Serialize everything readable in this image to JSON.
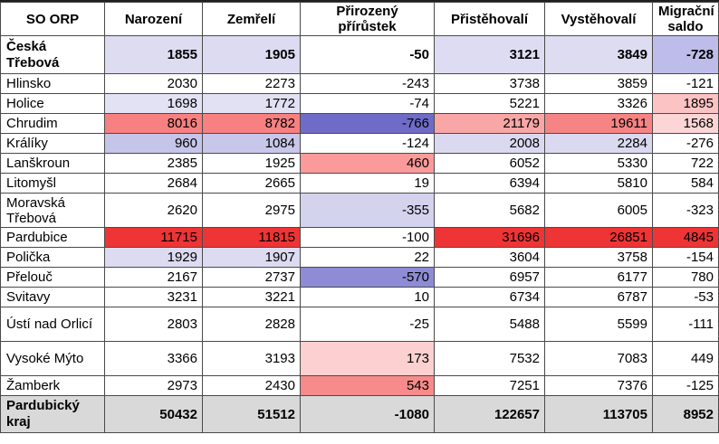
{
  "table": {
    "headers": [
      "SO ORP",
      "Narození",
      "Zemřelí",
      "Přirozený přírůstek",
      "Přistěhovalí",
      "Vystěhovalí",
      "Migrační saldo"
    ],
    "rows": [
      {
        "name": "Česká Třebová",
        "values": [
          "1855",
          "1905",
          "-50",
          "3121",
          "3849",
          "-728"
        ],
        "bold": true,
        "colors": [
          "#dddcf1",
          "#dcdbf1",
          "#ffffff",
          "#dedcf2",
          "#dddcf1",
          "#bebce8"
        ]
      },
      {
        "name": "Hlinsko",
        "values": [
          "2030",
          "2273",
          "-243",
          "3738",
          "3859",
          "-121"
        ],
        "bold": false,
        "colors": [
          "#ffffff",
          "#ffffff",
          "#ffffff",
          "#ffffff",
          "#ffffff",
          "#ffffff"
        ]
      },
      {
        "name": "Holice",
        "values": [
          "1698",
          "1772",
          "-74",
          "5221",
          "3326",
          "1895"
        ],
        "bold": false,
        "colors": [
          "#e3e2f4",
          "#e2e1f3",
          "#ffffff",
          "#ffffff",
          "#ffffff",
          "#fbc3c3"
        ]
      },
      {
        "name": "Chrudim",
        "values": [
          "8016",
          "8782",
          "-766",
          "21179",
          "19611",
          "1568"
        ],
        "bold": false,
        "colors": [
          "#f78080",
          "#f78080",
          "#6e6cc7",
          "#f9a6a6",
          "#f78484",
          "#fcd6d6"
        ]
      },
      {
        "name": "Králíky",
        "values": [
          "960",
          "1084",
          "-124",
          "2008",
          "2284",
          "-276"
        ],
        "bold": false,
        "colors": [
          "#c5c4e9",
          "#c8c7ea",
          "#ffffff",
          "#dad9f0",
          "#dad9f0",
          "#ffffff"
        ]
      },
      {
        "name": "Lanškroun",
        "values": [
          "2385",
          "1925",
          "460",
          "6052",
          "5330",
          "722"
        ],
        "bold": false,
        "colors": [
          "#ffffff",
          "#ffffff",
          "#fa9a9a",
          "#ffffff",
          "#ffffff",
          "#ffffff"
        ]
      },
      {
        "name": "Litomyšl",
        "values": [
          "2684",
          "2665",
          "19",
          "6394",
          "5810",
          "584"
        ],
        "bold": false,
        "colors": [
          "#ffffff",
          "#ffffff",
          "#ffffff",
          "#ffffff",
          "#ffffff",
          "#ffffff"
        ]
      },
      {
        "name": "Moravská Třebová",
        "values": [
          "2620",
          "2975",
          "-355",
          "5682",
          "6005",
          "-323"
        ],
        "bold": false,
        "colors": [
          "#ffffff",
          "#ffffff",
          "#d4d3ee",
          "#ffffff",
          "#ffffff",
          "#ffffff"
        ]
      },
      {
        "name": "Pardubice",
        "values": [
          "11715",
          "11815",
          "-100",
          "31696",
          "26851",
          "4845"
        ],
        "bold": false,
        "colors": [
          "#ee3434",
          "#ee3434",
          "#ffffff",
          "#ee3434",
          "#ee3434",
          "#ee3434"
        ]
      },
      {
        "name": "Polička",
        "values": [
          "1929",
          "1907",
          "22",
          "3604",
          "3758",
          "-154"
        ],
        "bold": false,
        "colors": [
          "#dcdbf1",
          "#dcdbf1",
          "#ffffff",
          "#ffffff",
          "#ffffff",
          "#ffffff"
        ]
      },
      {
        "name": "Přelouč",
        "values": [
          "2167",
          "2737",
          "-570",
          "6957",
          "6177",
          "780"
        ],
        "bold": false,
        "colors": [
          "#ffffff",
          "#ffffff",
          "#8e8cd4",
          "#ffffff",
          "#ffffff",
          "#ffffff"
        ]
      },
      {
        "name": "Svitavy",
        "values": [
          "3231",
          "3221",
          "10",
          "6734",
          "6787",
          "-53"
        ],
        "bold": false,
        "colors": [
          "#ffffff",
          "#ffffff",
          "#ffffff",
          "#ffffff",
          "#ffffff",
          "#ffffff"
        ]
      },
      {
        "name": "Ústí nad Orlicí",
        "values": [
          "2803",
          "2828",
          "-25",
          "5488",
          "5599",
          "-111"
        ],
        "bold": false,
        "colors": [
          "#ffffff",
          "#ffffff",
          "#ffffff",
          "#ffffff",
          "#ffffff",
          "#ffffff"
        ]
      },
      {
        "name": "Vysoké Mýto",
        "values": [
          "3366",
          "3193",
          "173",
          "7532",
          "7083",
          "449"
        ],
        "bold": false,
        "colors": [
          "#ffffff",
          "#ffffff",
          "#fcd0d0",
          "#ffffff",
          "#ffffff",
          "#ffffff"
        ]
      },
      {
        "name": "Žamberk",
        "values": [
          "2973",
          "2430",
          "543",
          "7251",
          "7376",
          "-125"
        ],
        "bold": false,
        "colors": [
          "#ffffff",
          "#ffffff",
          "#f78a8a",
          "#ffffff",
          "#ffffff",
          "#ffffff"
        ]
      },
      {
        "name": "Pardubický kraj",
        "values": [
          "50432",
          "51512",
          "-1080",
          "122657",
          "113705",
          "8952"
        ],
        "bold": true,
        "colors": [
          "#d9d9d9",
          "#d9d9d9",
          "#d9d9d9",
          "#d9d9d9",
          "#d9d9d9",
          "#d9d9d9"
        ],
        "name_color": "#d9d9d9"
      }
    ]
  }
}
